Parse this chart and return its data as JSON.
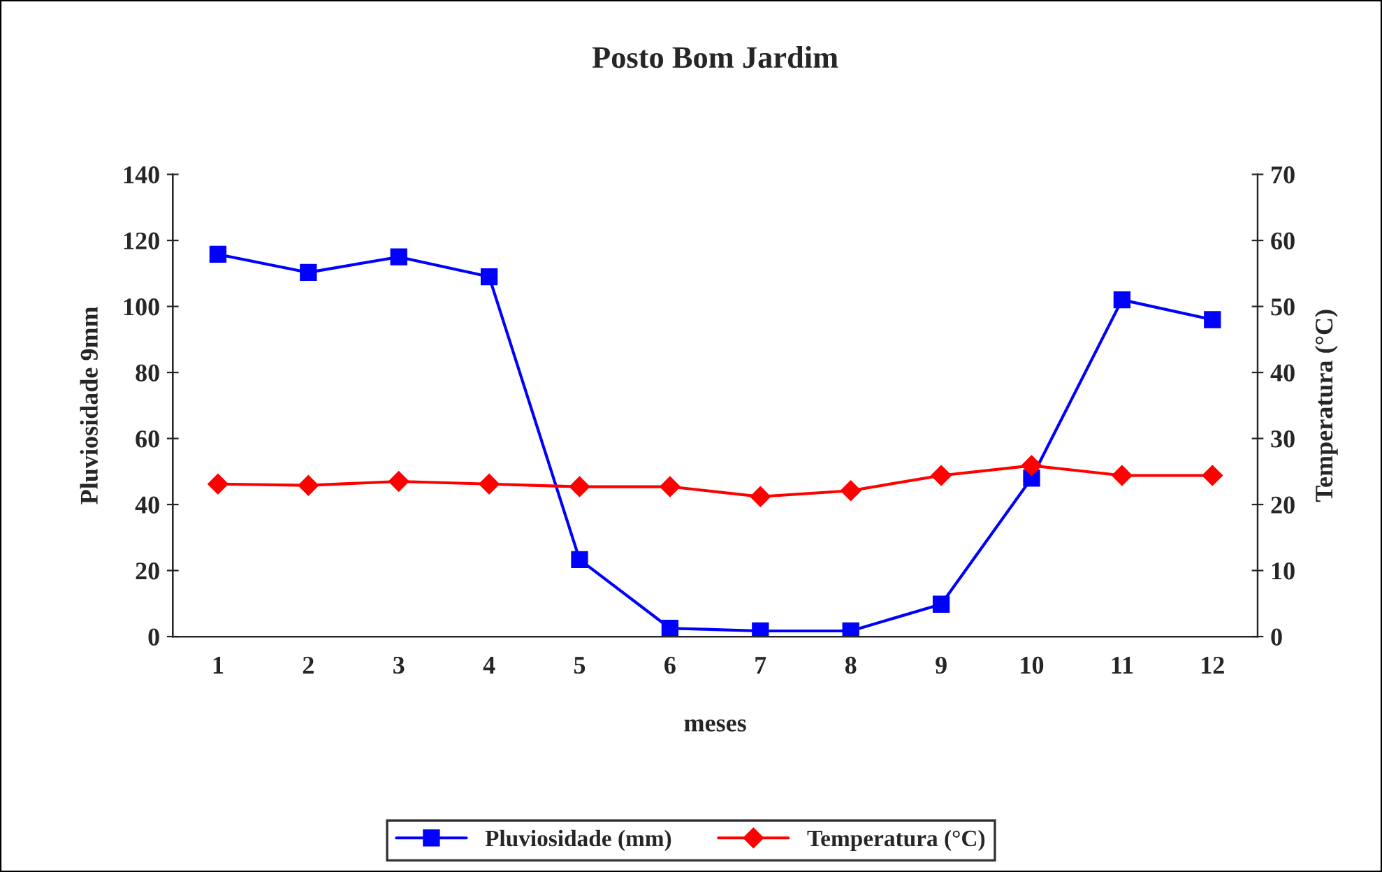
{
  "chart_data": {
    "type": "line",
    "title": "Posto Bom Jardim",
    "xlabel": "meses",
    "ylabel": "Pluviosidade 9mm",
    "y2label": "Temperatura (°C)",
    "categories": [
      "1",
      "2",
      "3",
      "4",
      "5",
      "6",
      "7",
      "8",
      "9",
      "10",
      "11",
      "12"
    ],
    "series": [
      {
        "name": "Pluviosidade (mm)",
        "color": "#0000ff",
        "marker": "square",
        "values": [
          115.8,
          110.3,
          115,
          109,
          23.3,
          2.5,
          1.7,
          1.7,
          9.8,
          48,
          102,
          96
        ]
      },
      {
        "name": "Temperatura (°C)",
        "color": "#ff0000",
        "marker": "diamond",
        "axis": "y2",
        "values": [
          23.1,
          22.9,
          23.5,
          23.1,
          22.7,
          22.7,
          21.2,
          22.1,
          24.4,
          25.9,
          24.4,
          24.4
        ]
      }
    ],
    "ylim": [
      0,
      140
    ],
    "yticks": [
      0,
      20,
      40,
      60,
      80,
      100,
      120,
      140
    ],
    "y2lim": [
      0,
      70
    ],
    "y2ticks": [
      0,
      10,
      20,
      30,
      40,
      50,
      60,
      70
    ],
    "grid": false,
    "legend": "bottom"
  }
}
